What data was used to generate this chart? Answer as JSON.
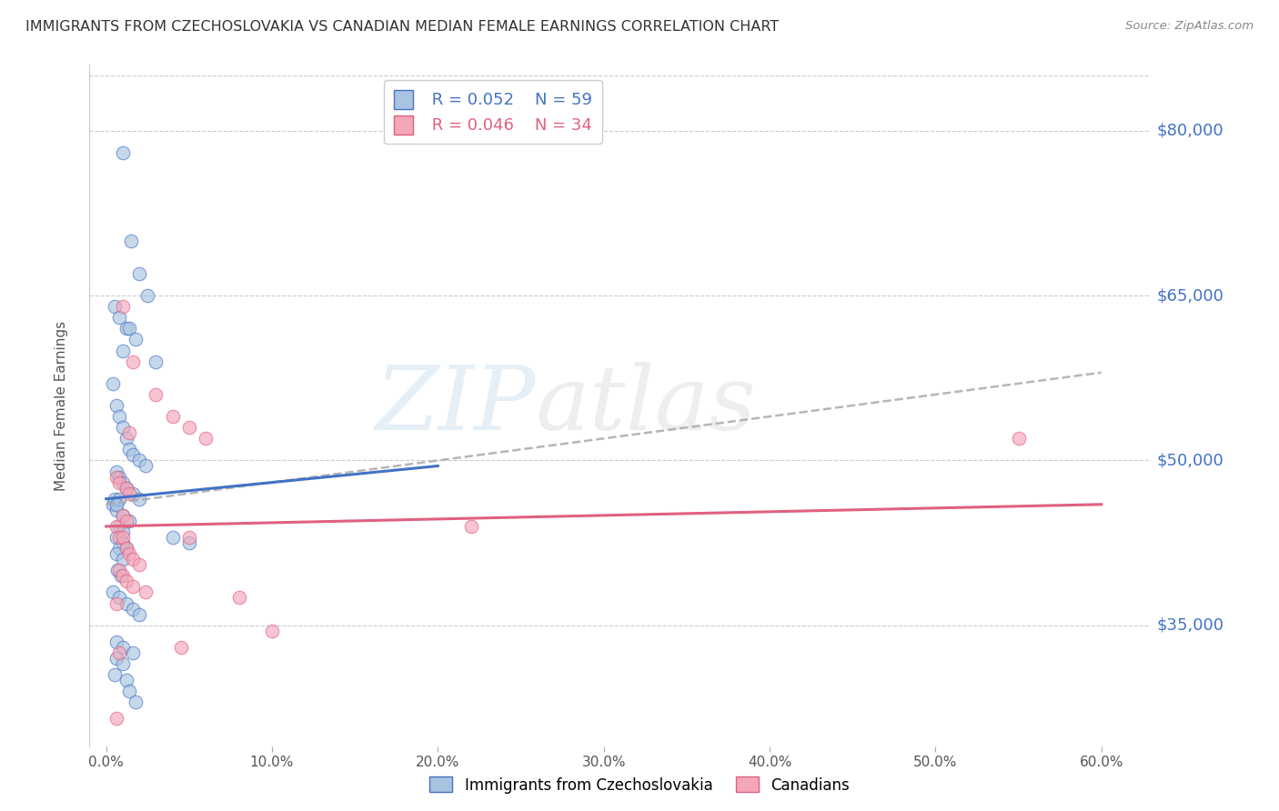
{
  "title": "IMMIGRANTS FROM CZECHOSLOVAKIA VS CANADIAN MEDIAN FEMALE EARNINGS CORRELATION CHART",
  "source": "Source: ZipAtlas.com",
  "ylabel": "Median Female Earnings",
  "xlabel_ticks": [
    "0.0%",
    "10.0%",
    "20.0%",
    "30.0%",
    "40.0%",
    "50.0%",
    "60.0%"
  ],
  "xlabel_vals": [
    0,
    10,
    20,
    30,
    40,
    50,
    60
  ],
  "ytick_labels": [
    "$35,000",
    "$50,000",
    "$65,000",
    "$80,000"
  ],
  "ytick_vals": [
    35000,
    50000,
    65000,
    80000
  ],
  "ylim": [
    24000,
    86000
  ],
  "xlim": [
    -1.0,
    63.0
  ],
  "legend_blue_R": "0.052",
  "legend_blue_N": "59",
  "legend_pink_R": "0.046",
  "legend_pink_N": "34",
  "blue_color": "#a8c4e0",
  "blue_line_color": "#4472c4",
  "blue_dash_color": "#aaaaaa",
  "pink_color": "#f4a7b9",
  "pink_line_color": "#e06080",
  "scatter_alpha": 0.65,
  "blue_x": [
    1.0,
    1.5,
    2.0,
    2.5,
    0.5,
    0.8,
    1.2,
    1.4,
    1.8,
    1.0,
    3.0,
    0.4,
    0.6,
    0.8,
    1.0,
    1.2,
    1.4,
    1.6,
    2.0,
    2.4,
    0.6,
    0.8,
    1.0,
    1.2,
    1.6,
    2.0,
    0.4,
    0.6,
    1.0,
    1.4,
    0.8,
    1.0,
    4.0,
    0.6,
    1.0,
    5.0,
    0.8,
    1.2,
    0.6,
    1.0,
    0.5,
    0.7,
    0.9,
    0.4,
    0.8,
    1.2,
    1.6,
    2.0,
    0.6,
    1.0,
    1.6,
    0.6,
    1.0,
    0.5,
    1.2,
    0.8,
    0.6,
    1.4,
    1.8
  ],
  "blue_y": [
    78000,
    70000,
    67000,
    65000,
    64000,
    63000,
    62000,
    62000,
    61000,
    60000,
    59000,
    57000,
    55000,
    54000,
    53000,
    52000,
    51000,
    50500,
    50000,
    49500,
    49000,
    48500,
    48000,
    47500,
    47000,
    46500,
    46000,
    45500,
    45000,
    44500,
    44000,
    43500,
    43000,
    43000,
    42500,
    42500,
    42000,
    42000,
    41500,
    41000,
    46500,
    40000,
    39500,
    38000,
    37500,
    37000,
    36500,
    36000,
    33500,
    33000,
    32500,
    32000,
    31500,
    30500,
    30000,
    46500,
    46000,
    29000,
    28000
  ],
  "pink_x": [
    1.0,
    1.6,
    3.0,
    4.0,
    5.0,
    6.0,
    0.6,
    0.8,
    1.2,
    1.4,
    0.6,
    0.8,
    1.0,
    5.0,
    1.2,
    1.4,
    1.6,
    2.0,
    0.8,
    1.0,
    1.2,
    1.6,
    2.4,
    8.0,
    0.6,
    10.0,
    4.5,
    0.8,
    1.4,
    1.0,
    1.2,
    22.0,
    0.6,
    55.0
  ],
  "pink_y": [
    64000,
    59000,
    56000,
    54000,
    53000,
    52000,
    48500,
    48000,
    47500,
    47000,
    44000,
    43000,
    43000,
    43000,
    42000,
    41500,
    41000,
    40500,
    40000,
    39500,
    39000,
    38500,
    38000,
    37500,
    37000,
    34500,
    33000,
    32500,
    52500,
    45000,
    44500,
    44000,
    26500,
    52000
  ],
  "background_color": "#ffffff",
  "grid_color": "#cccccc",
  "title_color": "#333333",
  "right_label_color": "#4472c4",
  "watermark_color": "#c8d8e8"
}
